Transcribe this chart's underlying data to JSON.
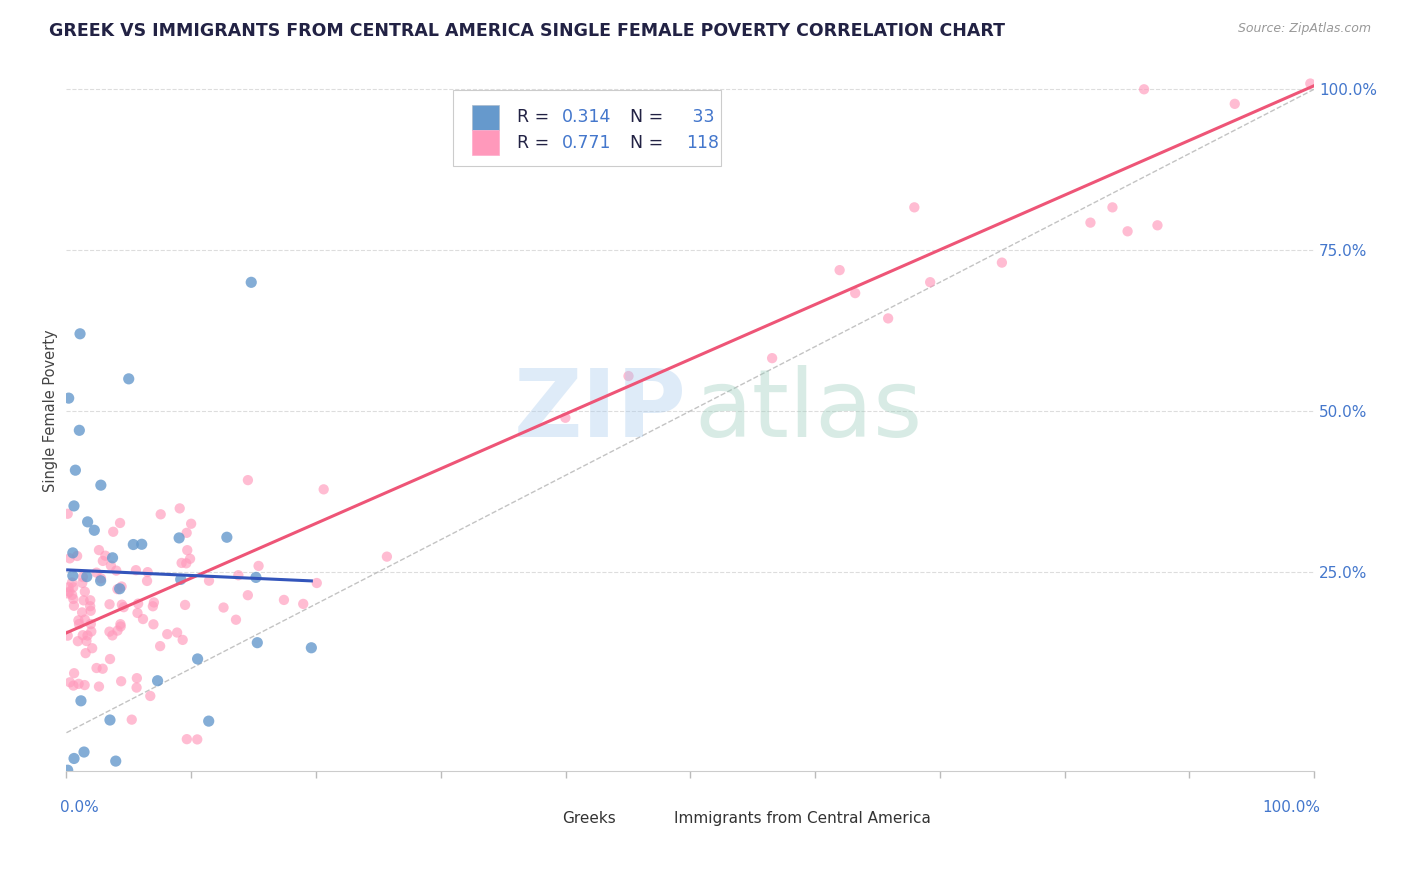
{
  "title": "GREEK VS IMMIGRANTS FROM CENTRAL AMERICA SINGLE FEMALE POVERTY CORRELATION CHART",
  "source_text": "Source: ZipAtlas.com",
  "ylabel": "Single Female Poverty",
  "color_blue": "#6699CC",
  "color_pink": "#FF99BB",
  "color_blue_line": "#3355BB",
  "color_pink_line": "#EE5577",
  "color_grey_diag": "#AAAAAA",
  "title_color": "#222244",
  "source_color": "#999999",
  "axis_label_color": "#4477CC",
  "grid_color": "#DDDDDD",
  "legend_text_color": "#222244",
  "legend_value_color": "#4477CC",
  "xlim": [
    0.0,
    1.0
  ],
  "ylim": [
    -0.06,
    1.06
  ],
  "ytick_positions": [
    0.25,
    0.5,
    0.75,
    1.0
  ],
  "ytick_labels": [
    "25.0%",
    "50.0%",
    "75.0%",
    "100.0%"
  ],
  "blue_seed": 42,
  "pink_seed": 99
}
